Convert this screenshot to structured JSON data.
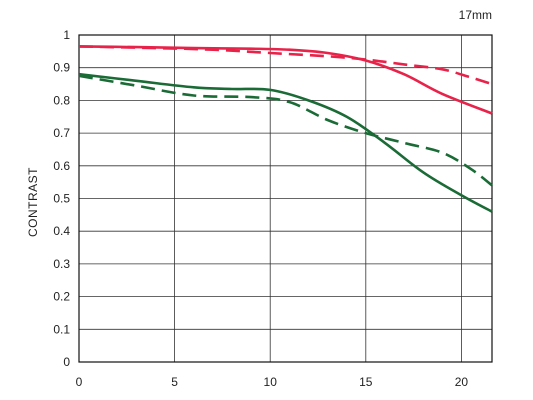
{
  "chart_data": {
    "type": "line",
    "title": "17mm",
    "xlabel": "",
    "ylabel": "CONTRAST",
    "xlim": [
      0,
      21.6
    ],
    "ylim": [
      0,
      1
    ],
    "xticks": [
      "0",
      "5",
      "10",
      "15",
      "20"
    ],
    "yticks": [
      "0",
      "0.1",
      "0.2",
      "0.3",
      "0.4",
      "0.5",
      "0.6",
      "0.7",
      "0.8",
      "0.9",
      "1"
    ],
    "grid": true,
    "legend": "none",
    "colors": {
      "red": "#e8234a",
      "green": "#1a6b36"
    },
    "series": [
      {
        "color": "#e8234a",
        "dash": false,
        "points": [
          [
            0,
            0.965
          ],
          [
            3,
            0.963
          ],
          [
            6,
            0.96
          ],
          [
            9,
            0.958
          ],
          [
            11,
            0.955
          ],
          [
            13,
            0.945
          ],
          [
            15,
            0.922
          ],
          [
            17,
            0.88
          ],
          [
            19,
            0.82
          ],
          [
            21.6,
            0.76
          ]
        ]
      },
      {
        "color": "#e8234a",
        "dash": true,
        "points": [
          [
            0,
            0.965
          ],
          [
            4,
            0.96
          ],
          [
            7,
            0.955
          ],
          [
            10,
            0.945
          ],
          [
            13,
            0.935
          ],
          [
            15,
            0.925
          ],
          [
            17,
            0.91
          ],
          [
            19,
            0.895
          ],
          [
            20.5,
            0.87
          ],
          [
            21.6,
            0.85
          ]
        ]
      },
      {
        "color": "#1a6b36",
        "dash": false,
        "points": [
          [
            0,
            0.88
          ],
          [
            3,
            0.86
          ],
          [
            6,
            0.84
          ],
          [
            8,
            0.835
          ],
          [
            10,
            0.832
          ],
          [
            12,
            0.8
          ],
          [
            14,
            0.75
          ],
          [
            16,
            0.67
          ],
          [
            18,
            0.58
          ],
          [
            20,
            0.51
          ],
          [
            21.6,
            0.46
          ]
        ]
      },
      {
        "color": "#1a6b36",
        "dash": true,
        "points": [
          [
            0,
            0.875
          ],
          [
            3,
            0.845
          ],
          [
            6,
            0.815
          ],
          [
            9,
            0.81
          ],
          [
            11,
            0.795
          ],
          [
            13,
            0.74
          ],
          [
            15,
            0.7
          ],
          [
            17,
            0.67
          ],
          [
            19,
            0.64
          ],
          [
            20.5,
            0.59
          ],
          [
            21.6,
            0.54
          ]
        ]
      }
    ]
  }
}
